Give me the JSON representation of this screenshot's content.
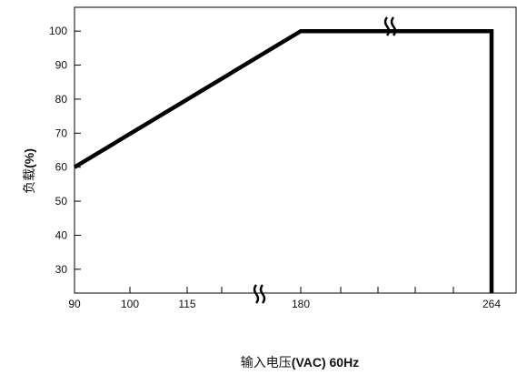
{
  "chart_data": {
    "type": "line",
    "title": "",
    "xlabel": "输入电压(VAC) 60Hz",
    "xlabel_parts": {
      "cn": "输入电压",
      "rest": "(VAC) 60Hz"
    },
    "ylabel": "负载(%)",
    "ylabel_parts": {
      "cn": "负载",
      "rest": "(%)"
    },
    "x_tick_labels": [
      "90",
      "100",
      "115",
      "180",
      "264"
    ],
    "y_tick_labels": [
      "30",
      "40",
      "50",
      "60",
      "70",
      "80",
      "90",
      "100"
    ],
    "y_ticks": [
      30,
      40,
      50,
      60,
      70,
      80,
      90,
      100
    ],
    "ylim": [
      23,
      107
    ],
    "x_axis_break": true,
    "grid": false,
    "legend": "none",
    "series": [
      {
        "points": [
          {
            "x": 90,
            "y": 60
          },
          {
            "x": 180,
            "y": 100
          },
          {
            "x": 264,
            "y": 100
          },
          {
            "x": 264,
            "y": 23
          }
        ]
      }
    ],
    "line_color": "#000000"
  }
}
